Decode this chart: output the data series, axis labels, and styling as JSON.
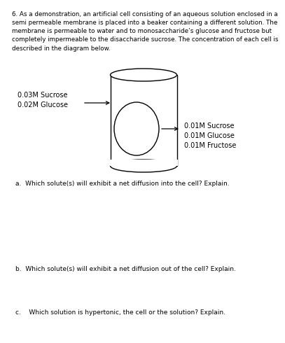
{
  "bg_color": "#ffffff",
  "header_text": "6. As a demonstration, an artificial cell consisting of an aqueous solution enclosed in a\nsemi permeable membrane is placed into a beaker containing a different solution. The\nmembrane is permeable to water and to monosaccharide’s glucose and fructose but\ncompletely impermeable to the disaccharide sucrose. The concentration of each cell is\ndescribed in the diagram below.",
  "outside_label": "0.03M Sucrose\n0.02M Glucose",
  "inside_label": "0.01M Sucrose\n0.01M Glucose\n0.01M Fructose",
  "q_a": "a.  Which solute(s) will exhibit a net diffusion into the cell? Explain.",
  "q_b": "b.  Which solute(s) will exhibit a net diffusion out of the cell? Explain.",
  "q_c": "c.    Which solution is hypertonic, the cell or the solution? Explain.",
  "font_size_header": 6.3,
  "font_size_labels": 7.0,
  "font_size_questions": 6.5
}
